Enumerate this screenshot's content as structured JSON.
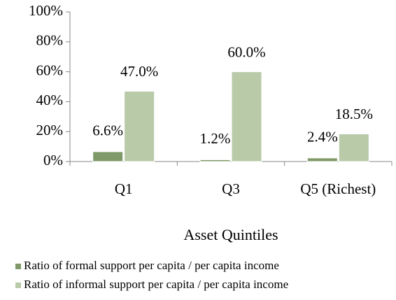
{
  "chart_data": {
    "type": "bar",
    "x_label": "Asset Quintiles",
    "categories": [
      "Q1",
      "Q3",
      "Q5 (Richest)"
    ],
    "series": [
      {
        "name": "Ratio of formal support per capita / per capita income",
        "color": "#7f9a68",
        "values": [
          6.6,
          1.2,
          2.4
        ],
        "value_labels": [
          "6.6%",
          "1.2%",
          "2.4%"
        ]
      },
      {
        "name": "Ratio of informal support per capita / per capita income",
        "color": "#b9caa9",
        "values": [
          47.0,
          60.0,
          18.5
        ],
        "value_labels": [
          "47.0%",
          "60.0%",
          "18.5%"
        ]
      }
    ],
    "ylim": [
      0,
      100
    ],
    "yticks": [
      {
        "value": 0,
        "label": "0%"
      },
      {
        "value": 20,
        "label": "20%"
      },
      {
        "value": 40,
        "label": "40%"
      },
      {
        "value": 60,
        "label": "60%"
      },
      {
        "value": 80,
        "label": "80%"
      },
      {
        "value": 100,
        "label": "100%"
      }
    ],
    "legend": "bottom"
  }
}
